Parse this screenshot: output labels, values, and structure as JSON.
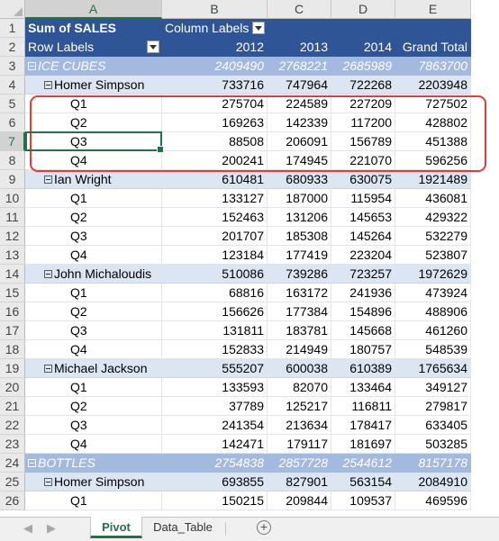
{
  "columns": [
    "A",
    "B",
    "C",
    "D",
    "E"
  ],
  "header": {
    "r1_a": "Sum of SALES",
    "r1_b": "Column Labels",
    "r2_a": "Row Labels",
    "years": [
      "2012",
      "2013",
      "2014",
      "Grand Total"
    ]
  },
  "rows": [
    {
      "num": "3",
      "type": "prod",
      "label": "ICE CUBES",
      "vals": [
        "2409490",
        "2768221",
        "2685989",
        "7863700"
      ]
    },
    {
      "num": "4",
      "type": "person",
      "label": "Homer Simpson",
      "vals": [
        "733716",
        "747964",
        "722268",
        "2203948"
      ]
    },
    {
      "num": "5",
      "type": "q",
      "label": "Q1",
      "vals": [
        "275704",
        "224589",
        "227209",
        "727502"
      ]
    },
    {
      "num": "6",
      "type": "q",
      "label": "Q2",
      "vals": [
        "169263",
        "142339",
        "117200",
        "428802"
      ]
    },
    {
      "num": "7",
      "type": "q",
      "label": "Q3",
      "vals": [
        "88508",
        "206091",
        "156789",
        "451388"
      ]
    },
    {
      "num": "8",
      "type": "q",
      "label": "Q4",
      "vals": [
        "200241",
        "174945",
        "221070",
        "596256"
      ]
    },
    {
      "num": "9",
      "type": "person",
      "label": "Ian Wright",
      "vals": [
        "610481",
        "680933",
        "630075",
        "1921489"
      ]
    },
    {
      "num": "10",
      "type": "q",
      "label": "Q1",
      "vals": [
        "133127",
        "187000",
        "115954",
        "436081"
      ]
    },
    {
      "num": "11",
      "type": "q",
      "label": "Q2",
      "vals": [
        "152463",
        "131206",
        "145653",
        "429322"
      ]
    },
    {
      "num": "12",
      "type": "q",
      "label": "Q3",
      "vals": [
        "201707",
        "185308",
        "145264",
        "532279"
      ]
    },
    {
      "num": "13",
      "type": "q",
      "label": "Q4",
      "vals": [
        "123184",
        "177419",
        "223204",
        "523807"
      ]
    },
    {
      "num": "14",
      "type": "person",
      "label": "John Michaloudis",
      "vals": [
        "510086",
        "739286",
        "723257",
        "1972629"
      ]
    },
    {
      "num": "15",
      "type": "q",
      "label": "Q1",
      "vals": [
        "68816",
        "163172",
        "241936",
        "473924"
      ]
    },
    {
      "num": "16",
      "type": "q",
      "label": "Q2",
      "vals": [
        "156626",
        "177384",
        "154896",
        "488906"
      ]
    },
    {
      "num": "17",
      "type": "q",
      "label": "Q3",
      "vals": [
        "131811",
        "183781",
        "145668",
        "461260"
      ]
    },
    {
      "num": "18",
      "type": "q",
      "label": "Q4",
      "vals": [
        "152833",
        "214949",
        "180757",
        "548539"
      ]
    },
    {
      "num": "19",
      "type": "person",
      "label": "Michael Jackson",
      "vals": [
        "555207",
        "600038",
        "610389",
        "1765634"
      ]
    },
    {
      "num": "20",
      "type": "q",
      "label": "Q1",
      "vals": [
        "133593",
        "82070",
        "133464",
        "349127"
      ]
    },
    {
      "num": "21",
      "type": "q",
      "label": "Q2",
      "vals": [
        "37789",
        "125217",
        "116811",
        "279817"
      ]
    },
    {
      "num": "22",
      "type": "q",
      "label": "Q3",
      "vals": [
        "241354",
        "213634",
        "178417",
        "633405"
      ]
    },
    {
      "num": "23",
      "type": "q",
      "label": "Q4",
      "vals": [
        "142471",
        "179117",
        "181697",
        "503285"
      ]
    },
    {
      "num": "24",
      "type": "prod",
      "label": "BOTTLES",
      "vals": [
        "2754838",
        "2857728",
        "2544612",
        "8157178"
      ]
    },
    {
      "num": "25",
      "type": "person",
      "label": "Homer Simpson",
      "vals": [
        "693855",
        "827901",
        "563154",
        "2084910"
      ]
    },
    {
      "num": "26",
      "type": "q",
      "label": "Q1",
      "vals": [
        "150215",
        "209844",
        "109537",
        "469596"
      ]
    }
  ],
  "tabs": {
    "active": "Pivot",
    "other": "Data_Table",
    "add_symbol": "⊕"
  },
  "selected_cell": "A7",
  "colors": {
    "header_bg": "#2f5597",
    "product_bg": "#a3b9dd",
    "person_bg": "#dce5f2",
    "highlight": "#e03c3c",
    "excel_green": "#217346"
  }
}
